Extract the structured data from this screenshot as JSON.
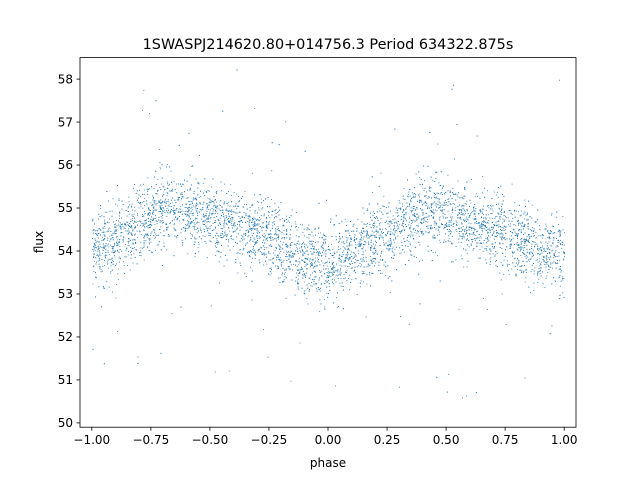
{
  "chart_data": {
    "type": "scatter",
    "title": "1SWASPJ214620.80+014756.3 Period 634322.875s",
    "xlabel": "phase",
    "ylabel": "flux",
    "xlim": [
      -1.05,
      1.05
    ],
    "ylim": [
      49.9,
      58.5
    ],
    "xticks": [
      -1.0,
      -0.75,
      -0.5,
      -0.25,
      0.0,
      0.25,
      0.5,
      0.75,
      1.0
    ],
    "xtick_labels": [
      "−1.00",
      "−0.75",
      "−0.50",
      "−0.25",
      "0.00",
      "0.25",
      "0.50",
      "0.75",
      "1.00"
    ],
    "yticks": [
      50,
      51,
      52,
      53,
      54,
      55,
      56,
      57,
      58
    ],
    "ytick_labels": [
      "50",
      "51",
      "52",
      "53",
      "54",
      "55",
      "56",
      "57",
      "58"
    ],
    "grid": false,
    "marker_color": "#1f77b4",
    "series": [
      {
        "x": [
          -1.0,
          -0.95,
          -0.9,
          -0.85,
          -0.8,
          -0.75,
          -0.7,
          -0.65,
          -0.6,
          -0.55,
          -0.5,
          -0.45,
          -0.4,
          -0.35,
          -0.3,
          -0.25,
          -0.2,
          -0.15,
          -0.1,
          -0.05,
          0.0,
          0.05,
          0.1,
          0.15,
          0.2,
          0.25,
          0.3,
          0.35,
          0.4,
          0.45,
          0.5,
          0.55,
          0.6,
          0.65,
          0.7,
          0.75,
          0.8,
          0.85,
          0.9,
          0.95,
          1.0
        ],
        "y": [
          54.0,
          54.1,
          54.3,
          54.4,
          54.6,
          54.8,
          55.0,
          55.0,
          54.9,
          54.9,
          54.7,
          54.6,
          54.6,
          54.5,
          54.4,
          54.3,
          54.1,
          53.9,
          53.8,
          53.8,
          53.7,
          53.8,
          53.9,
          54.1,
          54.3,
          54.4,
          54.6,
          54.8,
          54.9,
          54.9,
          54.9,
          54.7,
          54.6,
          54.6,
          54.5,
          54.4,
          54.3,
          54.1,
          54.0,
          54.0,
          53.9
        ]
      }
    ]
  }
}
